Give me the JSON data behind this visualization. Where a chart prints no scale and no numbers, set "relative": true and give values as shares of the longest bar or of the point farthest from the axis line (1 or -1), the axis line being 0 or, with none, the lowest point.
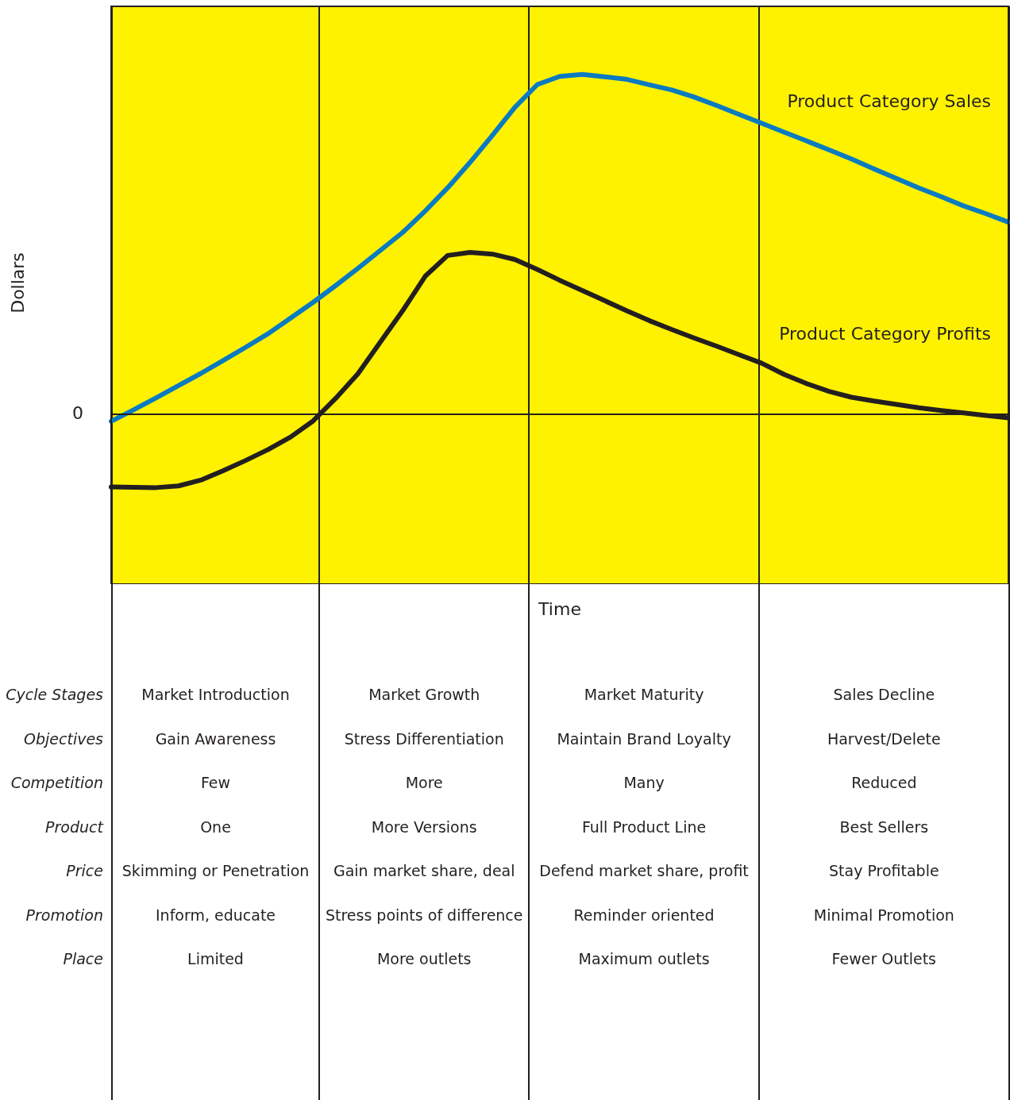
{
  "chart_data": {
    "type": "line",
    "relative": true,
    "ylabel": "Dollars",
    "legend": false,
    "categories": [
      null,
      null,
      null,
      null,
      null,
      null,
      null,
      null,
      null,
      null,
      null,
      null,
      null,
      null,
      null,
      null,
      null,
      null,
      null,
      null,
      null,
      null,
      null,
      null,
      null,
      null,
      null,
      null,
      null,
      null,
      null,
      null,
      null,
      null,
      null,
      null,
      null,
      null,
      null,
      null,
      null
    ],
    "series": [
      {
        "name": "Product Category Sales",
        "color": "#0a7bc1",
        "values": [
          -0.021,
          0.013,
          0.048,
          0.084,
          0.12,
          0.158,
          0.197,
          0.237,
          0.283,
          0.329,
          0.378,
          0.429,
          0.482,
          0.535,
          0.598,
          0.666,
          0.741,
          0.821,
          0.903,
          0.97,
          0.994,
          1,
          0.993,
          0.985,
          0.969,
          0.954,
          0.933,
          0.908,
          0.882,
          0.856,
          0.83,
          0.804,
          0.778,
          0.751,
          0.722,
          0.694,
          0.666,
          0.64,
          0.613,
          0.59,
          0.565
        ]
      },
      {
        "name": "Product Category Profits",
        "color": "#231f20",
        "values": [
          -0.214,
          -0.215,
          -0.216,
          -0.211,
          -0.194,
          -0.166,
          -0.136,
          -0.104,
          -0.067,
          -0.02,
          0.046,
          0.119,
          0.212,
          0.305,
          0.406,
          0.467,
          0.476,
          0.471,
          0.455,
          0.426,
          0.394,
          0.364,
          0.334,
          0.304,
          0.275,
          0.249,
          0.224,
          0.2,
          0.175,
          0.15,
          0.117,
          0.09,
          0.067,
          0.05,
          0.039,
          0.029,
          0.019,
          0.011,
          0.004,
          -0.004,
          -0.011
        ]
      }
    ],
    "annotations": [
      "0",
      "Time",
      "Cycle Stages",
      "Market Introduction",
      "Market Growth",
      "Market Maturity",
      "Sales Decline",
      "Objectives",
      "Gain Awareness",
      "Stress Differentiation",
      "Maintain Brand Loyalty",
      "Harvest/Delete",
      "Competition",
      "Few",
      "More",
      "Many",
      "Reduced",
      "Product",
      "One",
      "More Versions",
      "Full Product Line",
      "Best Sellers",
      "Price",
      "Skimming or Penetration",
      "Gain market share, deal",
      "Defend market share, profit",
      "Stay Profitable",
      "Promotion",
      "Inform, educate",
      "Stress points of difference",
      "Reminder oriented",
      "Minimal Promotion",
      "Place",
      "Limited",
      "More outlets",
      "Maximum outlets",
      "Fewer Outlets"
    ]
  }
}
